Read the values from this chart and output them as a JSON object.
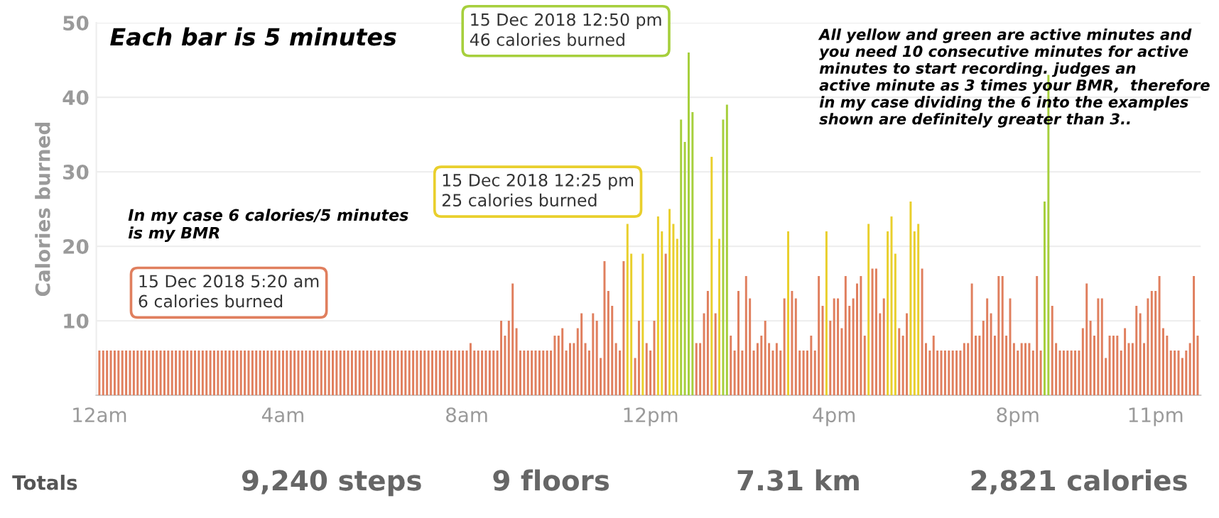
{
  "chart_data": {
    "type": "bar",
    "ylabel": "Calories burned",
    "categories": [
      "12am",
      null,
      null,
      null,
      null,
      null,
      null,
      null,
      null,
      null,
      null,
      null,
      null,
      null,
      null,
      null,
      null,
      null,
      null,
      null,
      null,
      null,
      null,
      null,
      null,
      null,
      null,
      null,
      null,
      null,
      null,
      null,
      null,
      null,
      null,
      null,
      null,
      null,
      null,
      null,
      null,
      null,
      null,
      null,
      null,
      null,
      null,
      null,
      "4am",
      null,
      null,
      null,
      null,
      null,
      null,
      null,
      null,
      null,
      null,
      null,
      null,
      null,
      null,
      null,
      null,
      null,
      null,
      null,
      null,
      null,
      null,
      null,
      null,
      null,
      null,
      null,
      null,
      null,
      null,
      null,
      null,
      null,
      null,
      null,
      null,
      null,
      null,
      null,
      null,
      null,
      null,
      null,
      null,
      null,
      null,
      null,
      "8am",
      null,
      null,
      null,
      null,
      null,
      null,
      null,
      null,
      null,
      null,
      null,
      null,
      null,
      null,
      null,
      null,
      null,
      null,
      null,
      null,
      null,
      null,
      null,
      null,
      null,
      null,
      null,
      null,
      null,
      null,
      null,
      null,
      null,
      null,
      null,
      null,
      null,
      null,
      null,
      null,
      null,
      null,
      null,
      null,
      null,
      null,
      null,
      "12pm",
      null,
      null,
      null,
      null,
      null,
      null,
      null,
      null,
      null,
      null,
      null,
      null,
      null,
      null,
      null,
      null,
      null,
      null,
      null,
      null,
      null,
      null,
      null,
      null,
      null,
      null,
      null,
      null,
      null,
      null,
      null,
      null,
      null,
      null,
      null,
      null,
      null,
      null,
      null,
      null,
      null,
      null,
      null,
      null,
      null,
      null,
      null,
      "4pm",
      null,
      null,
      null,
      null,
      null,
      null,
      null,
      null,
      null,
      null,
      null,
      null,
      null,
      null,
      null,
      null,
      null,
      null,
      null,
      null,
      null,
      null,
      null,
      null,
      null,
      null,
      null,
      null,
      null,
      null,
      null,
      null,
      null,
      null,
      null,
      null,
      null,
      null,
      null,
      null,
      null,
      null,
      null,
      null,
      null,
      null,
      null,
      "8pm",
      null,
      null,
      null,
      null,
      null,
      null,
      null,
      null,
      null,
      null,
      null,
      null,
      null,
      null,
      null,
      null,
      null,
      null,
      null,
      null,
      null,
      null,
      null,
      null,
      null,
      null,
      null,
      null,
      null,
      null,
      null,
      null,
      null,
      null,
      null,
      "11pm",
      null,
      null,
      null,
      null,
      null,
      null,
      null,
      null,
      null,
      null,
      null
    ],
    "values": [
      6,
      6,
      6,
      6,
      6,
      6,
      6,
      6,
      6,
      6,
      6,
      6,
      6,
      6,
      6,
      6,
      6,
      6,
      6,
      6,
      6,
      6,
      6,
      6,
      6,
      6,
      6,
      6,
      6,
      6,
      6,
      6,
      6,
      6,
      6,
      6,
      6,
      6,
      6,
      6,
      6,
      6,
      6,
      6,
      6,
      6,
      6,
      6,
      6,
      6,
      6,
      6,
      6,
      6,
      6,
      6,
      6,
      6,
      6,
      6,
      6,
      6,
      6,
      6,
      6,
      6,
      6,
      6,
      6,
      6,
      6,
      6,
      6,
      6,
      6,
      6,
      6,
      6,
      6,
      6,
      6,
      6,
      6,
      6,
      6,
      6,
      6,
      6,
      6,
      6,
      6,
      6,
      6,
      6,
      6,
      6,
      6,
      7,
      6,
      6,
      6,
      6,
      6,
      6,
      6,
      10,
      8,
      10,
      15,
      9,
      6,
      6,
      6,
      6,
      6,
      6,
      6,
      6,
      6,
      8,
      8,
      9,
      6,
      7,
      7,
      9,
      11,
      7,
      6,
      11,
      10,
      5,
      18,
      14,
      12,
      7,
      6,
      18,
      23,
      19,
      5,
      10,
      19,
      7,
      6,
      10,
      24,
      22,
      19,
      25,
      23,
      21,
      37,
      34,
      46,
      38,
      7,
      7,
      11,
      14,
      32,
      11,
      21,
      37,
      39,
      8,
      6,
      14,
      6,
      16,
      13,
      6,
      7,
      8,
      10,
      7,
      6,
      7,
      6,
      13,
      22,
      14,
      13,
      6,
      6,
      6,
      8,
      6,
      16,
      12,
      22,
      10,
      13,
      13,
      9,
      16,
      12,
      13,
      15,
      16,
      8,
      23,
      17,
      17,
      11,
      13,
      22,
      24,
      19,
      9,
      8,
      11,
      26,
      22,
      23,
      17,
      7,
      6,
      8,
      6,
      6,
      6,
      6,
      6,
      6,
      6,
      7,
      7,
      15,
      8,
      8,
      10,
      13,
      11,
      8,
      16,
      16,
      8,
      13,
      7,
      6,
      7,
      7,
      7,
      6,
      16,
      6,
      26,
      43,
      12,
      7,
      6,
      6,
      6,
      6,
      6,
      6,
      9,
      15,
      10,
      8,
      13,
      13,
      5,
      8,
      8,
      8,
      6,
      9,
      7,
      7,
      12,
      11,
      7,
      13,
      14,
      14,
      16,
      9,
      8,
      6,
      6,
      6,
      5,
      6,
      7,
      16,
      8
    ],
    "colors": [
      "#e07f5e",
      "#e07f5e",
      "#e07f5e",
      "#e07f5e",
      "#e07f5e",
      "#e07f5e",
      "#e07f5e",
      "#e07f5e",
      "#e07f5e",
      "#e07f5e",
      "#e07f5e",
      "#e07f5e",
      "#e07f5e",
      "#e07f5e",
      "#e07f5e",
      "#e07f5e",
      "#e07f5e",
      "#e07f5e",
      "#e07f5e",
      "#e07f5e",
      "#e07f5e",
      "#e07f5e",
      "#e07f5e",
      "#e07f5e",
      "#e07f5e",
      "#e07f5e",
      "#e07f5e",
      "#e07f5e",
      "#e07f5e",
      "#e07f5e",
      "#e07f5e",
      "#e07f5e",
      "#e07f5e",
      "#e07f5e",
      "#e07f5e",
      "#e07f5e",
      "#e07f5e",
      "#e07f5e",
      "#e07f5e",
      "#e07f5e",
      "#e07f5e",
      "#e07f5e",
      "#e07f5e",
      "#e07f5e",
      "#e07f5e",
      "#e07f5e",
      "#e07f5e",
      "#e07f5e",
      "#e07f5e",
      "#e07f5e",
      "#e07f5e",
      "#e07f5e",
      "#e07f5e",
      "#e07f5e",
      "#e07f5e",
      "#e07f5e",
      "#e07f5e",
      "#e07f5e",
      "#e07f5e",
      "#e07f5e",
      "#e07f5e",
      "#e07f5e",
      "#e07f5e",
      "#e07f5e",
      "#e07f5e",
      "#e07f5e",
      "#e07f5e",
      "#e07f5e",
      "#e07f5e",
      "#e07f5e",
      "#e07f5e",
      "#e07f5e",
      "#e07f5e",
      "#e07f5e",
      "#e07f5e",
      "#e07f5e",
      "#e07f5e",
      "#e07f5e",
      "#e07f5e",
      "#e07f5e",
      "#e07f5e",
      "#e07f5e",
      "#e07f5e",
      "#e07f5e",
      "#e07f5e",
      "#e07f5e",
      "#e07f5e",
      "#e07f5e",
      "#e07f5e",
      "#e07f5e",
      "#e07f5e",
      "#e07f5e",
      "#e07f5e",
      "#e07f5e",
      "#e07f5e",
      "#e07f5e",
      "#e07f5e",
      "#e07f5e",
      "#e07f5e",
      "#e07f5e",
      "#e07f5e",
      "#e07f5e",
      "#e07f5e",
      "#e07f5e",
      "#e07f5e",
      "#e07f5e",
      "#e07f5e",
      "#e07f5e",
      "#e07f5e",
      "#e07f5e",
      "#e07f5e",
      "#e07f5e",
      "#e07f5e",
      "#e07f5e",
      "#e07f5e",
      "#e07f5e",
      "#e07f5e",
      "#e07f5e",
      "#e07f5e",
      "#e07f5e",
      "#e07f5e",
      "#e07f5e",
      "#e07f5e",
      "#e07f5e",
      "#e07f5e",
      "#e07f5e",
      "#e07f5e",
      "#e07f5e",
      "#e07f5e",
      "#e07f5e",
      "#e07f5e",
      "#e07f5e",
      "#e07f5e",
      "#e07f5e",
      "#e07f5e",
      "#e07f5e",
      "#e07f5e",
      "#e07f5e",
      "#e9cf2c",
      "#e9cf2c",
      "#e07f5e",
      "#e07f5e",
      "#e9cf2c",
      "#e07f5e",
      "#e07f5e",
      "#e07f5e",
      "#e9cf2c",
      "#e9cf2c",
      "#e07f5e",
      "#e9cf2c",
      "#e9cf2c",
      "#e9cf2c",
      "#a6cf3c",
      "#a6cf3c",
      "#a6cf3c",
      "#a6cf3c",
      "#e07f5e",
      "#e07f5e",
      "#e07f5e",
      "#e07f5e",
      "#e9cf2c",
      "#e07f5e",
      "#e9cf2c",
      "#a6cf3c",
      "#a6cf3c",
      "#e07f5e",
      "#e07f5e",
      "#e07f5e",
      "#e07f5e",
      "#e07f5e",
      "#e07f5e",
      "#e07f5e",
      "#e07f5e",
      "#e07f5e",
      "#e07f5e",
      "#e07f5e",
      "#e07f5e",
      "#e07f5e",
      "#e07f5e",
      "#e07f5e",
      "#e9cf2c",
      "#e07f5e",
      "#e07f5e",
      "#e07f5e",
      "#e07f5e",
      "#e07f5e",
      "#e07f5e",
      "#e07f5e",
      "#e07f5e",
      "#e07f5e",
      "#e9cf2c",
      "#e07f5e",
      "#e07f5e",
      "#e07f5e",
      "#e07f5e",
      "#e07f5e",
      "#e07f5e",
      "#e07f5e",
      "#e07f5e",
      "#e07f5e",
      "#e07f5e",
      "#e9cf2c",
      "#e07f5e",
      "#e07f5e",
      "#e07f5e",
      "#e07f5e",
      "#e9cf2c",
      "#e9cf2c",
      "#e9cf2c",
      "#e07f5e",
      "#e07f5e",
      "#e07f5e",
      "#e9cf2c",
      "#e9cf2c",
      "#e9cf2c",
      "#e07f5e",
      "#e07f5e",
      "#e07f5e",
      "#e07f5e",
      "#e07f5e",
      "#e07f5e",
      "#e07f5e",
      "#e07f5e",
      "#e07f5e",
      "#e07f5e",
      "#e07f5e",
      "#e07f5e",
      "#e07f5e",
      "#e07f5e",
      "#e07f5e",
      "#e07f5e",
      "#e07f5e",
      "#e07f5e",
      "#e07f5e",
      "#e07f5e",
      "#e07f5e",
      "#e07f5e",
      "#e07f5e",
      "#e07f5e",
      "#e07f5e",
      "#e07f5e",
      "#e07f5e",
      "#e07f5e",
      "#e07f5e",
      "#e07f5e",
      "#e07f5e",
      "#e07f5e",
      "#a6cf3c",
      "#a6cf3c",
      "#e07f5e",
      "#e07f5e",
      "#e07f5e",
      "#e07f5e",
      "#e07f5e",
      "#e07f5e",
      "#e07f5e",
      "#e07f5e",
      "#e07f5e",
      "#e07f5e",
      "#e07f5e",
      "#e07f5e",
      "#e07f5e",
      "#e07f5e",
      "#e07f5e",
      "#e07f5e",
      "#e07f5e",
      "#e07f5e",
      "#e07f5e",
      "#e07f5e",
      "#e07f5e",
      "#e07f5e",
      "#e07f5e",
      "#e07f5e",
      "#e07f5e",
      "#e07f5e",
      "#e07f5e",
      "#e07f5e",
      "#e07f5e",
      "#e07f5e",
      "#e07f5e",
      "#e07f5e",
      "#e07f5e",
      "#e07f5e",
      "#e07f5e",
      "#e07f5e",
      "#e07f5e",
      "#e07f5e",
      "#e07f5e"
    ],
    "ylim": [
      0,
      50
    ],
    "yticks": [
      10,
      20,
      30,
      40,
      50
    ],
    "grid": "y",
    "annotations": [
      "Each bar is 5 minutes",
      "In my case 6 calories/5 minutes\nis my BMR",
      "15 Dec 2018 5:20 am\n6 calories burned",
      "15 Dec 2018 12:25 pm\n25 calories burned",
      "15 Dec 2018 12:50 pm\n46 calories burned",
      "All yellow and green are active minutes and\nyou need 10 consecutive minutes for active\nminutes to start recording. judges an\nactive minute as 3 times your BMR,  therefore\nin my case dividing the 6 into the examples\nshown are definitely greater than 3..",
      "Totals",
      "9,240 steps",
      "9 floors",
      "7.31 km",
      "2,821 calories"
    ]
  }
}
